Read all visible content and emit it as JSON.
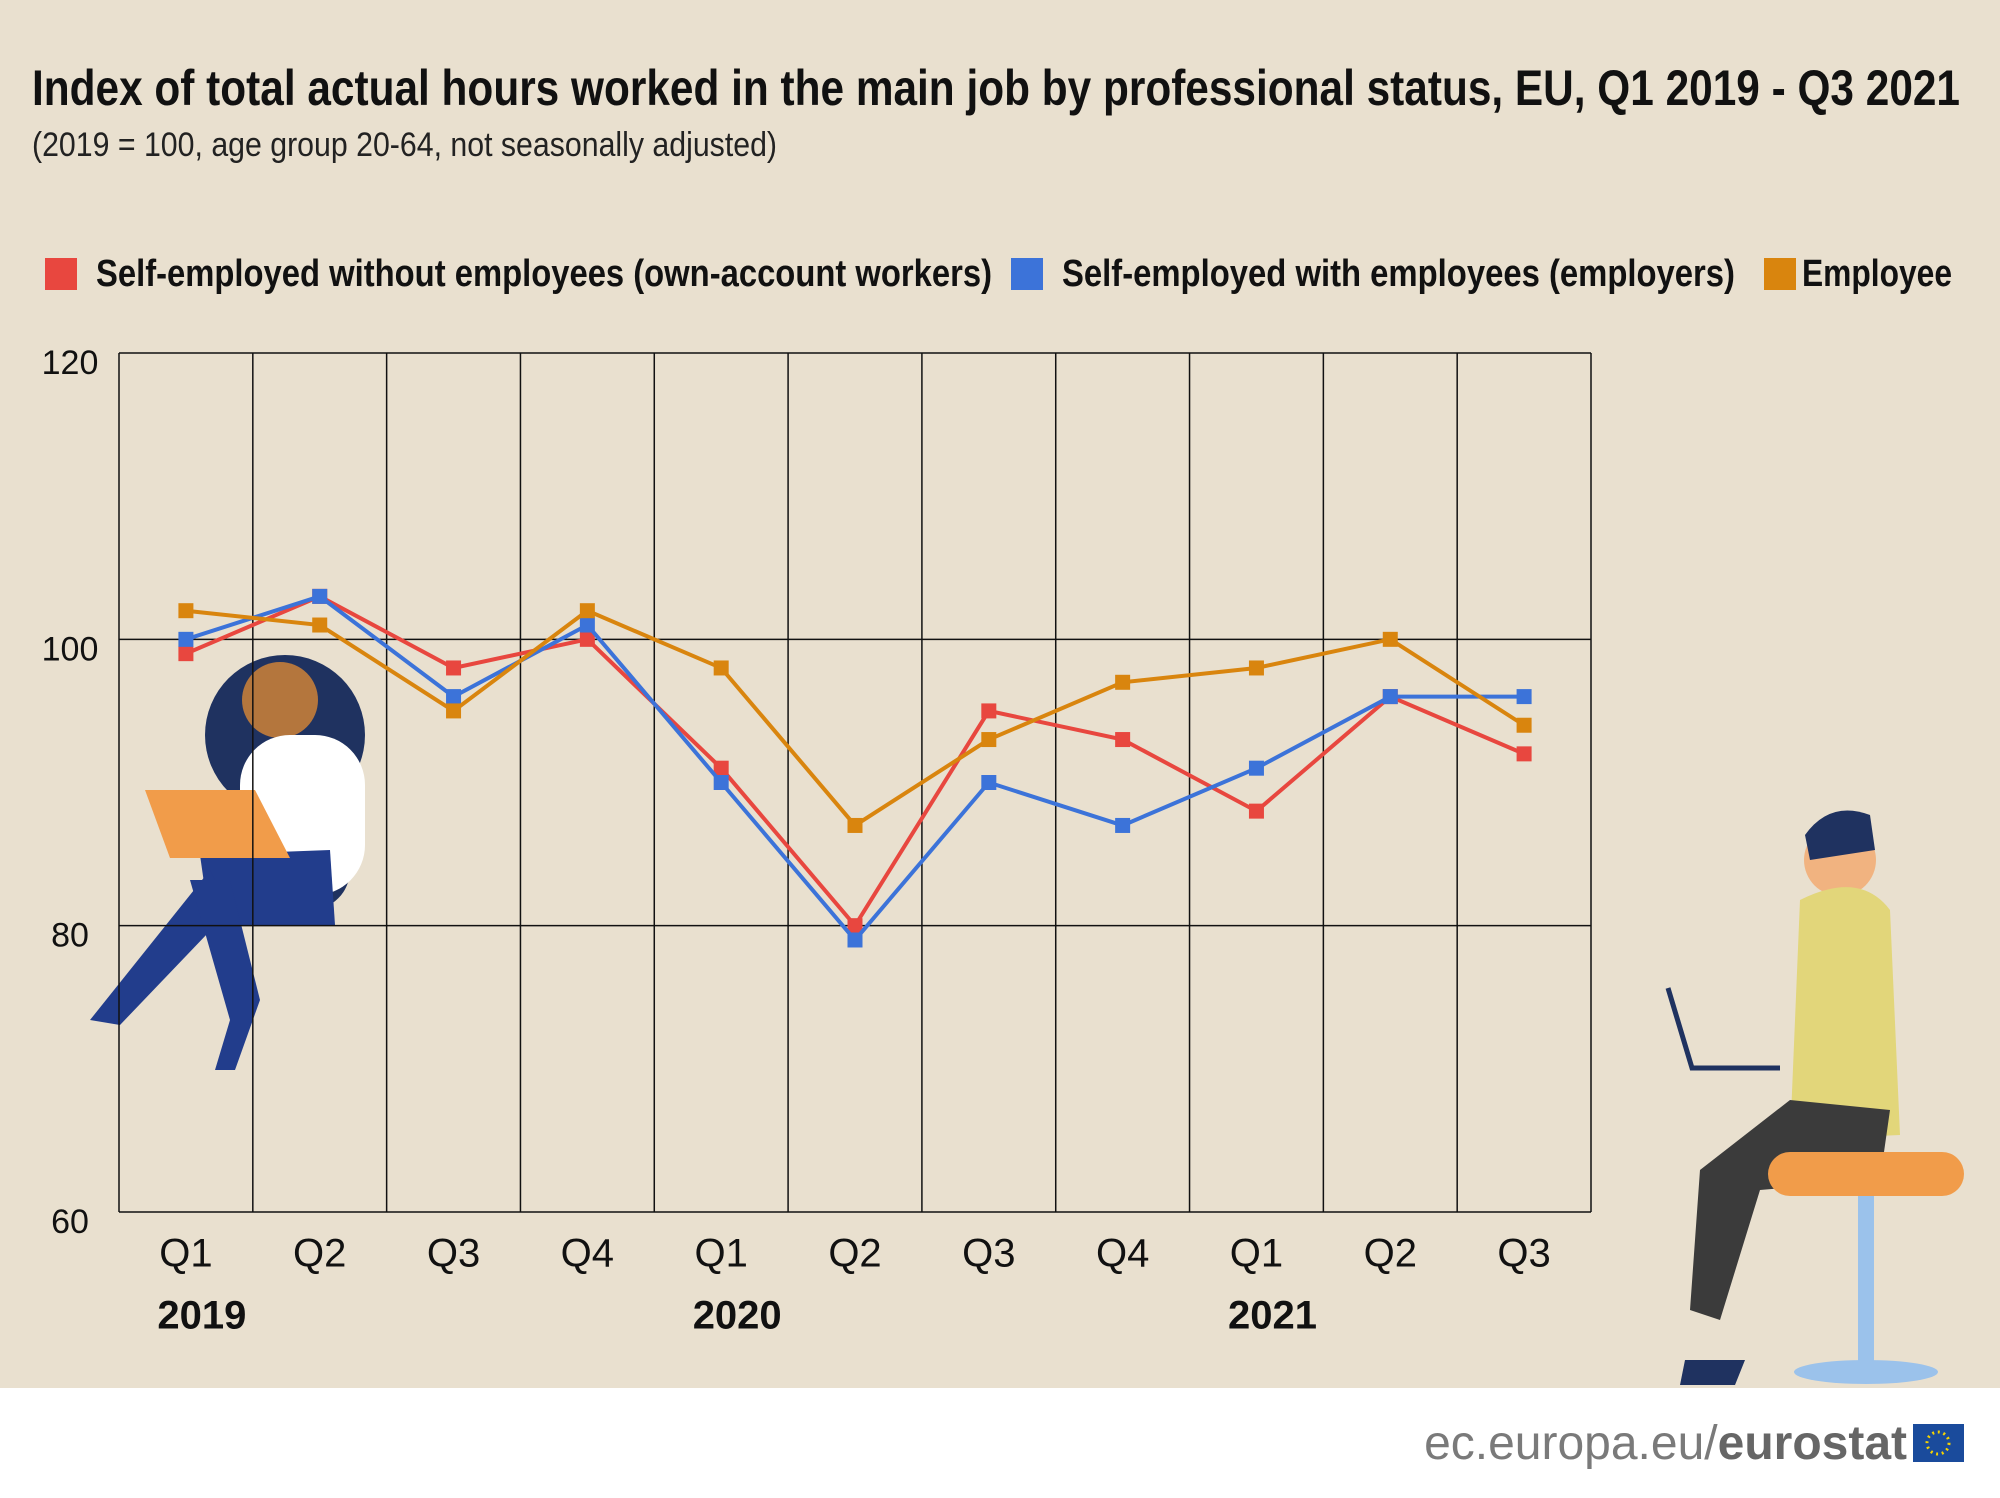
{
  "chart_data": {
    "type": "line",
    "title": "Index of total actual hours worked in the main job by professional status, EU, Q1 2019 - Q3 2021",
    "subtitle": "(2019 = 100, age group 20-64, not seasonally adjusted)",
    "categories": [
      "Q1",
      "Q2",
      "Q3",
      "Q4",
      "Q1",
      "Q2",
      "Q3",
      "Q4",
      "Q1",
      "Q2",
      "Q3"
    ],
    "category_groups": [
      "2019",
      "2020",
      "2021"
    ],
    "series": [
      {
        "name": "Self-employed without employees (own-account workers)",
        "color": "#e8473f",
        "values": [
          99,
          103,
          98,
          100,
          91,
          80,
          95,
          93,
          88,
          96,
          92
        ]
      },
      {
        "name": "Self-employed with employees (employers)",
        "color": "#3c73d9",
        "values": [
          100,
          103,
          96,
          101,
          90,
          79,
          90,
          87,
          91,
          96,
          96
        ]
      },
      {
        "name": "Employee",
        "color": "#d9850e",
        "values": [
          102,
          101,
          95,
          102,
          98,
          87,
          93,
          97,
          98,
          100,
          94
        ]
      }
    ],
    "ylim": [
      60,
      120
    ],
    "yticks": [
      60,
      80,
      100,
      120
    ],
    "grid": true,
    "legend": "top"
  },
  "footer": {
    "site": "ec.europa.eu/",
    "brand": "eurostat"
  }
}
